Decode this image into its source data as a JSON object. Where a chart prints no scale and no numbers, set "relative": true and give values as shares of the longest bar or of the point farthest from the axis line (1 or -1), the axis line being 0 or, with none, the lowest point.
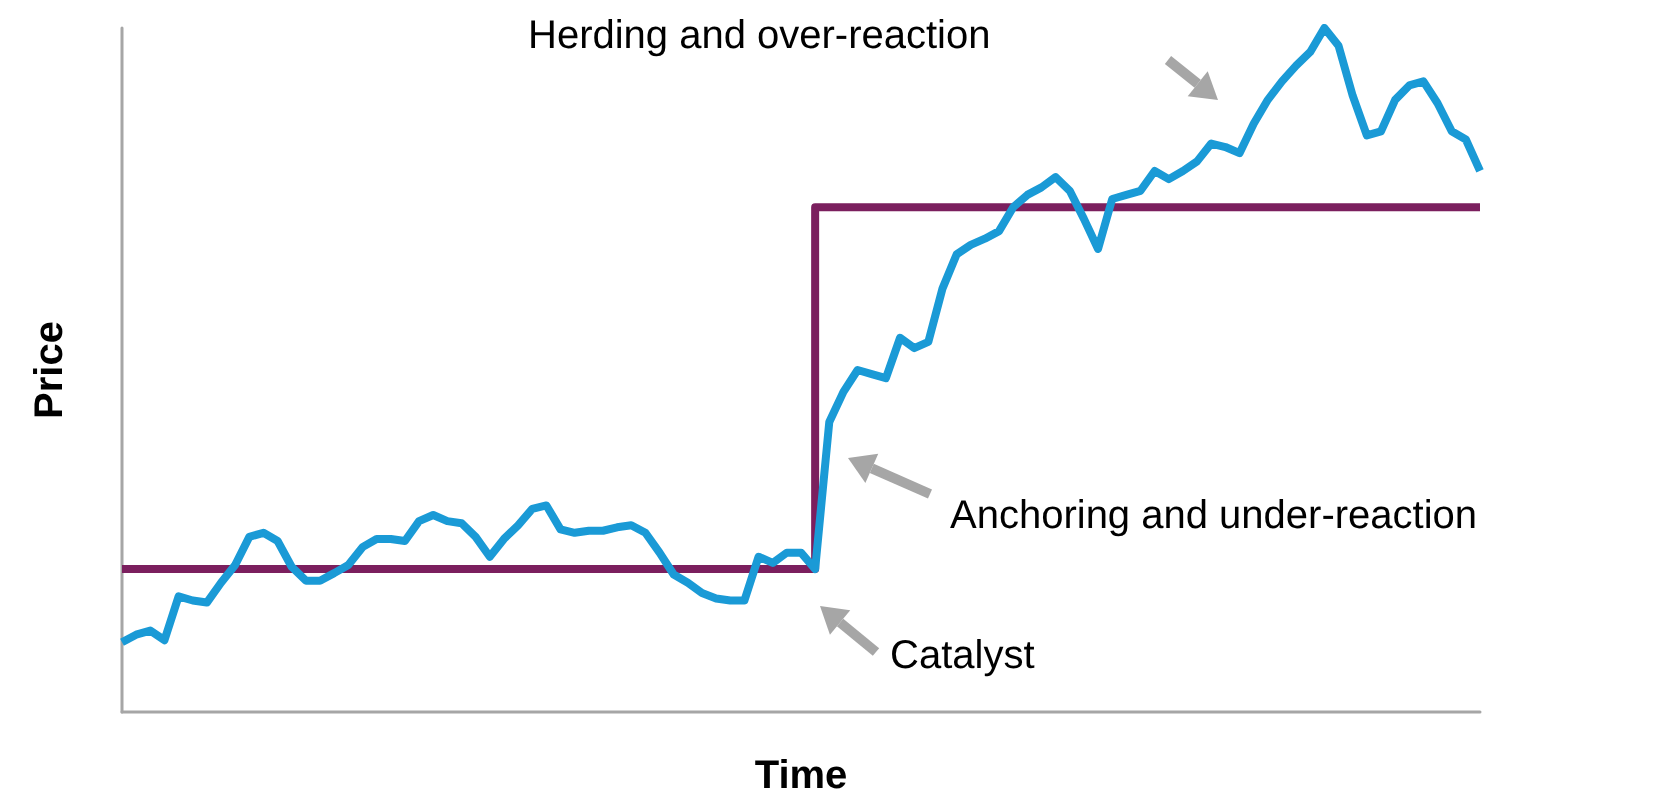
{
  "chart_data": {
    "type": "line",
    "xlabel": "Time",
    "ylabel": "Price",
    "relative": true,
    "grid": false,
    "categories": [
      null,
      null,
      null,
      null,
      null,
      null,
      null,
      null,
      null,
      null,
      null,
      null,
      null,
      null,
      null,
      null,
      null,
      null,
      null,
      null,
      null,
      null,
      null,
      null,
      null,
      null,
      null,
      null,
      null,
      null,
      null,
      null,
      null,
      null,
      null,
      null,
      null,
      null,
      null,
      null,
      null,
      null,
      null,
      null,
      null,
      null,
      null,
      null,
      null,
      null,
      null,
      null,
      null,
      null,
      null,
      null,
      null,
      null,
      null,
      null,
      null,
      null,
      null,
      null,
      null,
      null,
      null,
      null,
      null,
      null,
      null,
      null,
      null,
      null,
      null,
      null,
      null,
      null,
      null,
      null,
      null,
      null,
      null,
      null,
      null,
      null,
      null,
      null,
      null,
      null,
      null,
      null,
      null,
      null,
      null,
      null,
      null
    ],
    "series": [
      {
        "color": "#1a9ad6",
        "values": [
          0.102,
          0.113,
          0.119,
          0.105,
          0.169,
          0.163,
          0.16,
          0.189,
          0.215,
          0.256,
          0.262,
          0.25,
          0.212,
          0.192,
          0.192,
          0.203,
          0.215,
          0.241,
          0.253,
          0.253,
          0.25,
          0.279,
          0.288,
          0.279,
          0.276,
          0.256,
          0.227,
          0.253,
          0.273,
          0.297,
          0.302,
          0.267,
          0.262,
          0.265,
          0.265,
          0.27,
          0.273,
          0.262,
          0.233,
          0.201,
          0.189,
          0.174,
          0.166,
          0.163,
          0.163,
          0.227,
          0.218,
          0.233,
          0.233,
          0.209,
          0.424,
          0.468,
          0.5,
          0.494,
          0.488,
          0.547,
          0.532,
          0.541,
          0.619,
          0.669,
          0.683,
          0.692,
          0.703,
          0.738,
          0.756,
          0.767,
          0.782,
          0.762,
          0.721,
          0.677,
          0.75,
          0.756,
          0.762,
          0.791,
          0.779,
          0.791,
          0.805,
          0.831,
          0.826,
          0.817,
          0.86,
          0.895,
          0.922,
          0.945,
          0.965,
          1,
          0.974,
          0.901,
          0.843,
          0.849,
          0.895,
          0.916,
          0.922,
          0.89,
          0.849,
          0.837,
          0.791
        ]
      },
      {
        "type": "step",
        "color": "#7b1f5e",
        "values": [
          0.209,
          0.209,
          0.209,
          0.209,
          0.209,
          0.209,
          0.209,
          0.209,
          0.209,
          0.209,
          0.209,
          0.209,
          0.209,
          0.209,
          0.209,
          0.209,
          0.209,
          0.209,
          0.209,
          0.209,
          0.209,
          0.209,
          0.209,
          0.209,
          0.209,
          0.209,
          0.209,
          0.209,
          0.209,
          0.209,
          0.209,
          0.209,
          0.209,
          0.209,
          0.209,
          0.209,
          0.209,
          0.209,
          0.209,
          0.209,
          0.209,
          0.209,
          0.209,
          0.209,
          0.209,
          0.209,
          0.209,
          0.209,
          0.209,
          0.738,
          0.738,
          0.738,
          0.738,
          0.738,
          0.738,
          0.738,
          0.738,
          0.738,
          0.738,
          0.738,
          0.738,
          0.738,
          0.738,
          0.738,
          0.738,
          0.738,
          0.738,
          0.738,
          0.738,
          0.738,
          0.738,
          0.738,
          0.738,
          0.738,
          0.738,
          0.738,
          0.738,
          0.738,
          0.738,
          0.738,
          0.738,
          0.738,
          0.738,
          0.738,
          0.738,
          0.738,
          0.738,
          0.738,
          0.738,
          0.738,
          0.738,
          0.738,
          0.738,
          0.738,
          0.738,
          0.738,
          0.738
        ]
      }
    ],
    "annotations": [
      "Herding and over-reaction",
      "Anchoring and under-reaction",
      "Catalyst"
    ]
  }
}
